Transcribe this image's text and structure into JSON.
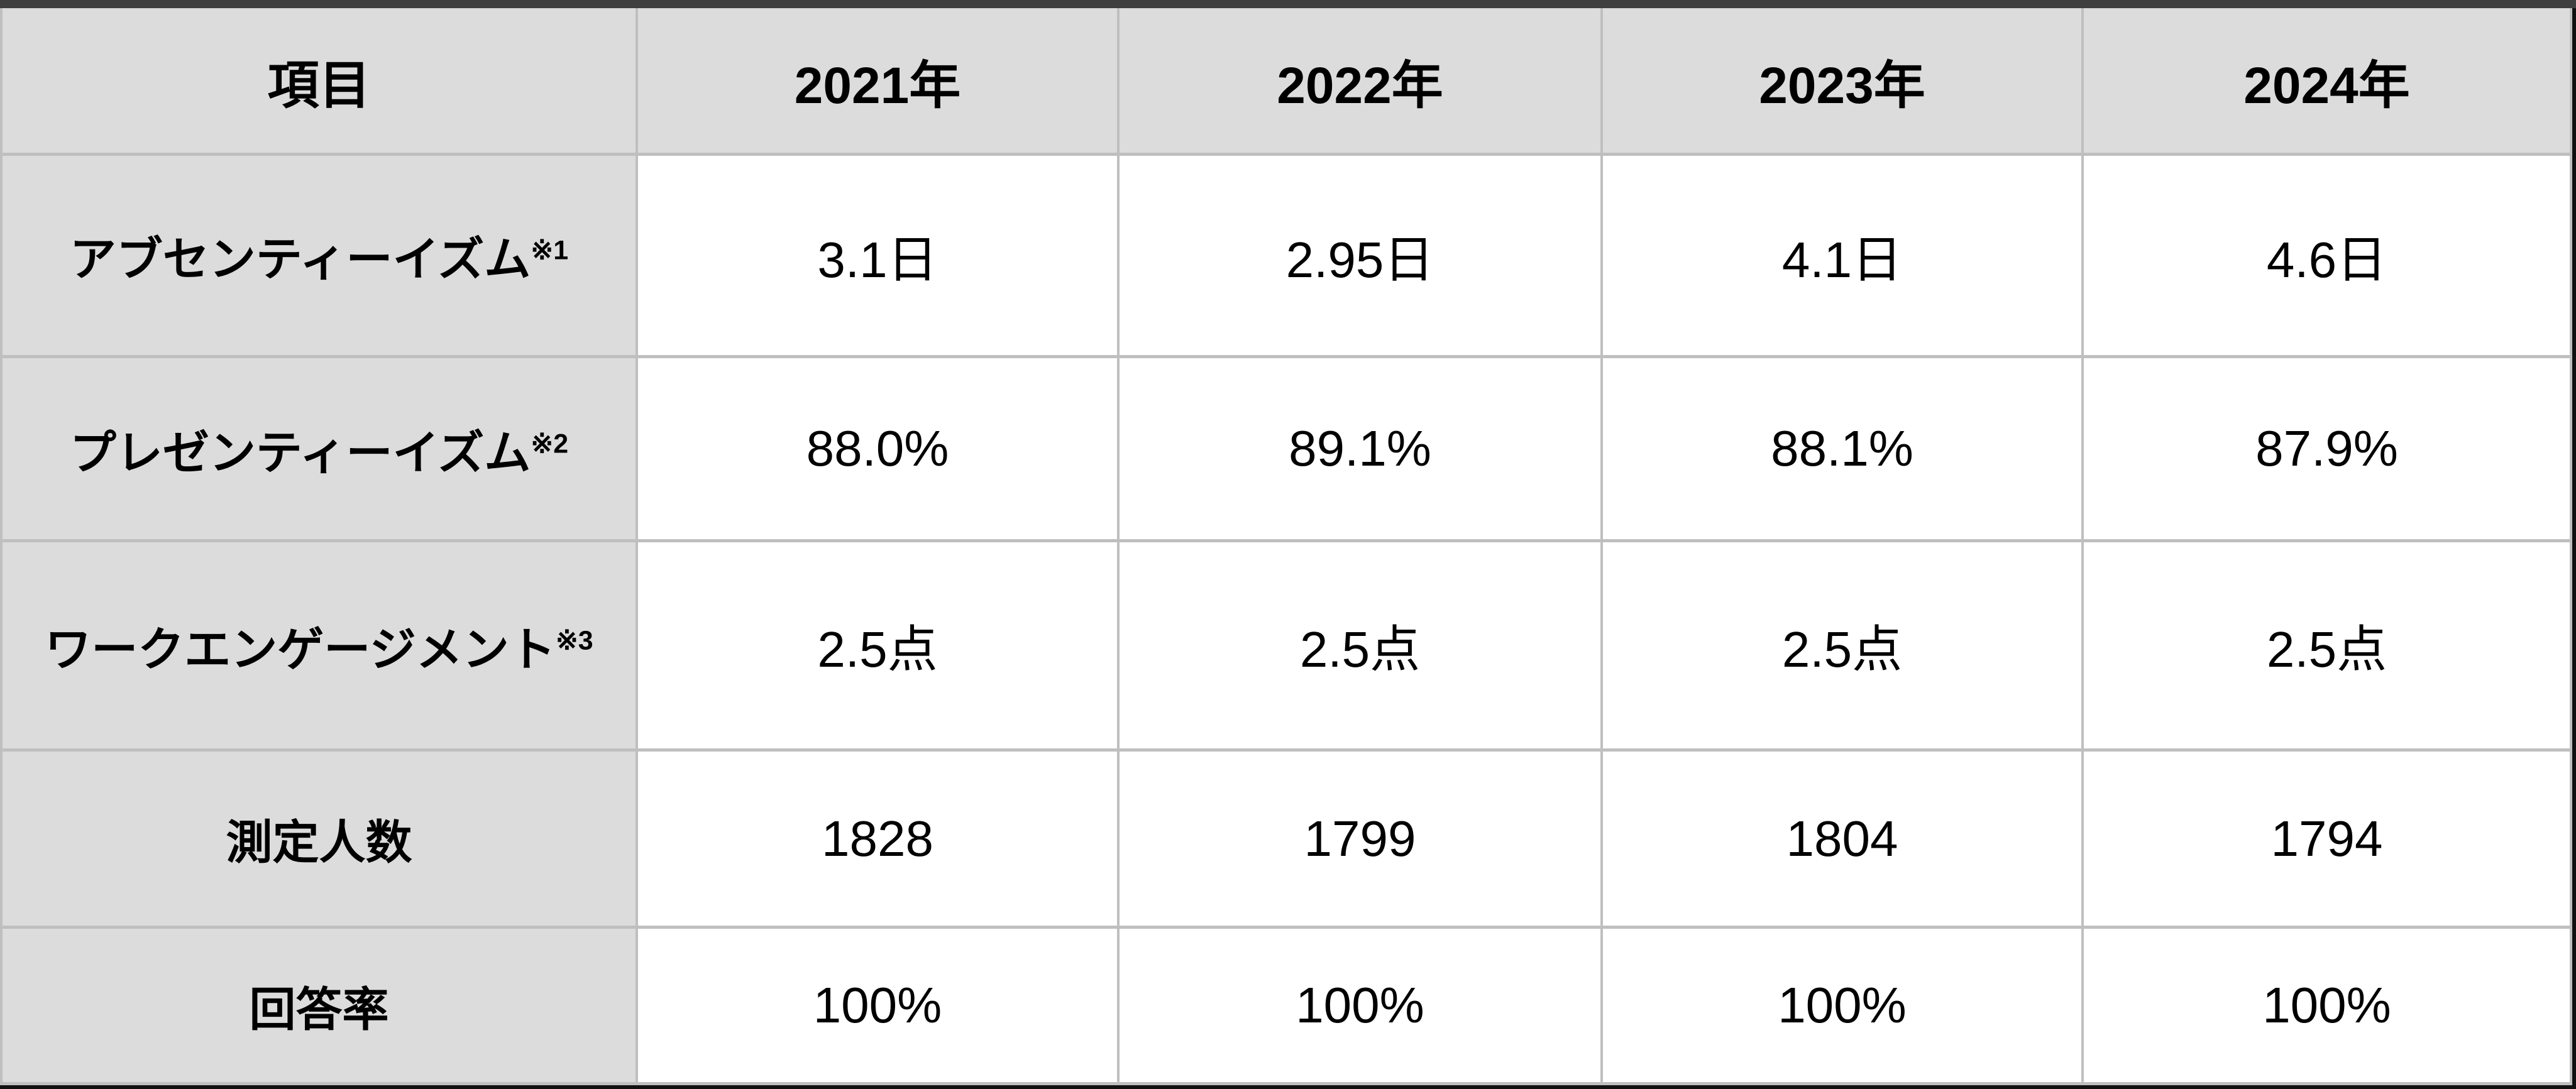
{
  "chart_data": {
    "type": "table",
    "columns": [
      "項目",
      "2021年",
      "2022年",
      "2023年",
      "2024年"
    ],
    "rows": [
      {
        "label": "アブセンティーイズム",
        "note": "※1",
        "values": [
          "3.1日",
          "2.95日",
          "4.1日",
          "4.6日"
        ]
      },
      {
        "label": "プレゼンティーイズム",
        "note": "※2",
        "values": [
          "88.0%",
          "89.1%",
          "88.1%",
          "87.9%"
        ]
      },
      {
        "label": "ワークエンゲージメント",
        "note": "※3",
        "values": [
          "2.5点",
          "2.5点",
          "2.5点",
          "2.5点"
        ]
      },
      {
        "label": "測定人数",
        "note": "",
        "values": [
          "1828",
          "1799",
          "1804",
          "1794"
        ]
      },
      {
        "label": "回答率",
        "note": "",
        "values": [
          "100%",
          "100%",
          "100%",
          "100%"
        ]
      }
    ],
    "layout": {
      "grid": "on",
      "header_row": true,
      "label_column": true
    }
  },
  "colors": {
    "header_bg": "#dcdcdc",
    "label_bg": "#dcdcdc",
    "cell_bg": "#ffffff",
    "grid_border": "#bfbfbf",
    "top_bar": "#3f3f3f",
    "edge_bar": "#111111",
    "text": "#000000"
  }
}
